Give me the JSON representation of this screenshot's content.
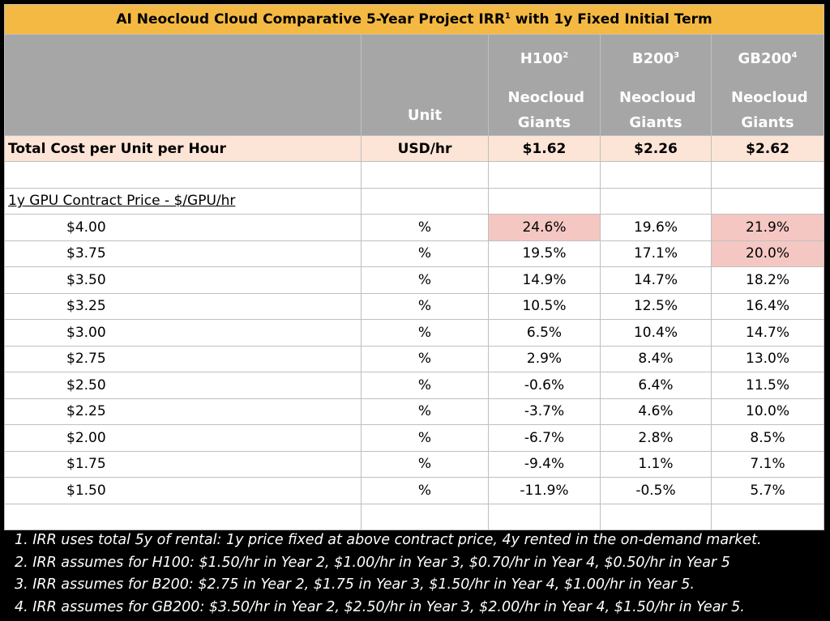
{
  "title": {
    "text": "AI Neocloud Cloud Comparative 5-Year Project IRR",
    "sup": "1",
    "rest": " with 1y Fixed Initial Term"
  },
  "header": {
    "unit": "Unit",
    "columns": [
      {
        "name": "H100",
        "sup": "2",
        "sub": "Neocloud Giants"
      },
      {
        "name": "B200",
        "sup": "3",
        "sub": "Neocloud Giants"
      },
      {
        "name": "GB200",
        "sup": "4",
        "sub": "Neocloud Giants"
      }
    ]
  },
  "total_row": [
    "Total Cost per Unit per Hour",
    "USD/hr",
    "$1.62",
    "$2.26",
    "$2.62"
  ],
  "section": "1y GPU Contract Price - $/GPU/hr",
  "rows": [
    [
      "$4.00",
      "%",
      "24.6%",
      "19.6%",
      "21.9%"
    ],
    [
      "$3.75",
      "%",
      "19.5%",
      "17.1%",
      "20.0%"
    ],
    [
      "$3.50",
      "%",
      "14.9%",
      "14.7%",
      "18.2%"
    ],
    [
      "$3.25",
      "%",
      "10.5%",
      "12.5%",
      "16.4%"
    ],
    [
      "$3.00",
      "%",
      "6.5%",
      "10.4%",
      "14.7%"
    ],
    [
      "$2.75",
      "%",
      "2.9%",
      "8.4%",
      "13.0%"
    ],
    [
      "$2.50",
      "%",
      "-0.6%",
      "6.4%",
      "11.5%"
    ],
    [
      "$2.25",
      "%",
      "-3.7%",
      "4.6%",
      "10.0%"
    ],
    [
      "$2.00",
      "%",
      "-6.7%",
      "2.8%",
      "8.5%"
    ],
    [
      "$1.75",
      "%",
      "-9.4%",
      "1.1%",
      "7.1%"
    ],
    [
      "$1.50",
      "%",
      "-11.9%",
      "-0.5%",
      "5.7%"
    ]
  ],
  "footnotes": [
    "1. IRR uses total 5y of rental: 1y price fixed at above contract price, 4y rented in the on-demand market.",
    "2. IRR assumes for H100: $1.50/hr in Year 2, $1.00/hr in Year 3, $0.70/hr in Year 4, $0.50/hr in Year 5",
    "3. IRR assumes for B200: $2.75 in Year 2, $1.75 in Year 3, $1.50/hr in Year 4, $1.00/hr in Year 5.",
    "4. IRR assumes for GB200: $3.50/hr in Year 2, $2.50/hr in Year 3, $2.00/hr in Year 4, $1.50/hr in Year 5."
  ]
}
